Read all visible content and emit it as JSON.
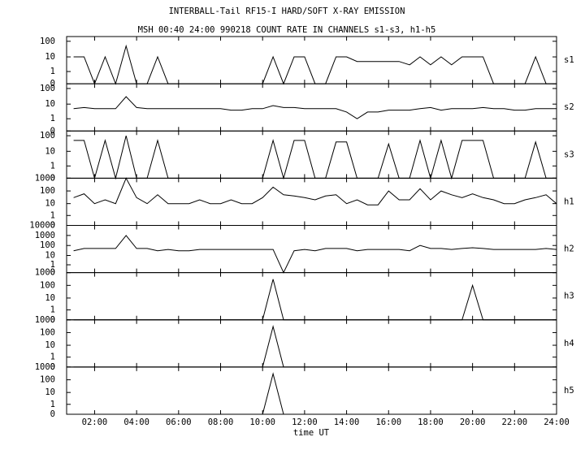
{
  "chart_data": {
    "type": "line",
    "layout": "stacked",
    "title": "INTERBALL-Tail RF15-I HARD/SOFT X-RAY EMISSION",
    "subtitle": "MSH 00:40 24:00 990218  COUNT RATE IN CHANNELS s1-s3, h1-h5",
    "xlabel": "time UT",
    "yscale": "log",
    "color": "#000000",
    "xlim": [
      0.667,
      24
    ],
    "xticks": [
      {
        "value": 2,
        "label": "02:00"
      },
      {
        "value": 4,
        "label": "04:00"
      },
      {
        "value": 6,
        "label": "06:00"
      },
      {
        "value": 8,
        "label": "08:00"
      },
      {
        "value": 10,
        "label": "10:00"
      },
      {
        "value": 12,
        "label": "12:00"
      },
      {
        "value": 14,
        "label": "14:00"
      },
      {
        "value": 16,
        "label": "16:00"
      },
      {
        "value": 18,
        "label": "18:00"
      },
      {
        "value": 20,
        "label": "20:00"
      },
      {
        "value": 22,
        "label": "22:00"
      },
      {
        "value": 24,
        "label": "24:00"
      }
    ],
    "x": [
      1,
      1.5,
      2,
      2.5,
      3,
      3.5,
      4,
      4.5,
      5,
      5.5,
      6,
      6.5,
      7,
      7.5,
      8,
      8.5,
      9,
      9.5,
      10,
      10.5,
      11,
      11.5,
      12,
      12.5,
      13,
      13.5,
      14,
      14.5,
      15,
      15.5,
      16,
      16.5,
      17,
      17.5,
      18,
      18.5,
      19,
      19.5,
      20,
      20.5,
      21,
      21.5,
      22,
      22.5,
      23,
      23.5,
      24
    ],
    "series": [
      {
        "name": "s1",
        "ylim": [
          0,
          200
        ],
        "yticks": [
          0,
          1,
          10,
          100
        ],
        "values": [
          10,
          10,
          0,
          10,
          0,
          50,
          0,
          0,
          10,
          0,
          0,
          0,
          0,
          0,
          0,
          0,
          0,
          0,
          0,
          10,
          0,
          10,
          10,
          0,
          0,
          10,
          10,
          5,
          5,
          5,
          5,
          5,
          3,
          10,
          3,
          10,
          3,
          10,
          10,
          10,
          0,
          0,
          0,
          0,
          10,
          0,
          0
        ]
      },
      {
        "name": "s2",
        "ylim": [
          0,
          200
        ],
        "yticks": [
          0,
          1,
          10,
          100
        ],
        "values": [
          5,
          6,
          5,
          5,
          5,
          30,
          6,
          5,
          5,
          5,
          5,
          5,
          5,
          5,
          5,
          4,
          4,
          5,
          5,
          8,
          6,
          6,
          5,
          5,
          5,
          5,
          3,
          1,
          3,
          3,
          4,
          4,
          4,
          5,
          6,
          4,
          5,
          5,
          5,
          6,
          5,
          5,
          4,
          4,
          5,
          5,
          5
        ]
      },
      {
        "name": "s3",
        "ylim": [
          0,
          200
        ],
        "yticks": [
          0,
          1,
          10,
          100
        ],
        "values": [
          50,
          50,
          0,
          50,
          0,
          100,
          0,
          0,
          50,
          0,
          0,
          0,
          0,
          0,
          0,
          0,
          0,
          0,
          0,
          50,
          0,
          50,
          50,
          0,
          0,
          40,
          40,
          0,
          0,
          0,
          30,
          0,
          0,
          50,
          0,
          50,
          0,
          50,
          50,
          50,
          0,
          0,
          0,
          0,
          40,
          0,
          0
        ]
      },
      {
        "name": "h1",
        "ylim": [
          0,
          1000
        ],
        "yticks": [
          0,
          1,
          10,
          100,
          1000
        ],
        "values": [
          30,
          60,
          10,
          20,
          10,
          1000,
          30,
          10,
          50,
          10,
          10,
          10,
          20,
          10,
          10,
          20,
          10,
          10,
          30,
          200,
          50,
          40,
          30,
          20,
          40,
          50,
          10,
          20,
          8,
          8,
          100,
          20,
          20,
          150,
          20,
          100,
          50,
          30,
          60,
          30,
          20,
          10,
          10,
          20,
          30,
          50,
          10
        ]
      },
      {
        "name": "h2",
        "ylim": [
          0,
          10000
        ],
        "yticks": [
          0,
          1,
          10,
          100,
          1000,
          10000
        ],
        "values": [
          30,
          50,
          50,
          50,
          50,
          1000,
          50,
          50,
          30,
          40,
          30,
          30,
          40,
          40,
          40,
          40,
          40,
          40,
          40,
          40,
          0,
          30,
          40,
          30,
          50,
          50,
          50,
          30,
          40,
          40,
          40,
          40,
          30,
          100,
          50,
          50,
          40,
          50,
          60,
          50,
          40,
          40,
          40,
          40,
          40,
          50,
          40
        ]
      },
      {
        "name": "h3",
        "ylim": [
          0,
          1000
        ],
        "yticks": [
          0,
          1,
          10,
          100,
          1000
        ],
        "values": [
          0,
          0,
          0,
          0,
          0,
          0,
          0,
          0,
          0,
          0,
          0,
          0,
          0,
          0,
          0,
          0,
          0,
          0,
          0,
          300,
          0,
          0,
          0,
          0,
          0,
          0,
          0,
          0,
          0,
          0,
          0,
          0,
          0,
          0,
          0,
          0,
          0,
          0,
          100,
          0,
          0,
          0,
          0,
          0,
          0,
          0,
          0
        ]
      },
      {
        "name": "h4",
        "ylim": [
          0,
          1000
        ],
        "yticks": [
          0,
          1,
          10,
          100,
          1000
        ],
        "values": [
          0,
          0,
          0,
          0,
          0,
          0,
          0,
          0,
          0,
          0,
          0,
          0,
          0,
          0,
          0,
          0,
          0,
          0,
          0,
          300,
          0,
          0,
          0,
          0,
          0,
          0,
          0,
          0,
          0,
          0,
          0,
          0,
          0,
          0,
          0,
          0,
          0,
          0,
          0,
          0,
          0,
          0,
          0,
          0,
          0,
          0,
          0
        ]
      },
      {
        "name": "h5",
        "ylim": [
          0,
          1000
        ],
        "yticks": [
          0,
          1,
          10,
          100,
          1000
        ],
        "values": [
          0,
          0,
          0,
          0,
          0,
          0,
          0,
          0,
          0,
          0,
          0,
          0,
          0,
          0,
          0,
          0,
          0,
          0,
          0,
          300,
          0,
          0,
          0,
          0,
          0,
          0,
          0,
          0,
          0,
          0,
          0,
          0,
          0,
          0,
          0,
          0,
          0,
          0,
          0,
          0,
          0,
          0,
          0,
          0,
          0,
          0,
          0
        ]
      }
    ]
  }
}
